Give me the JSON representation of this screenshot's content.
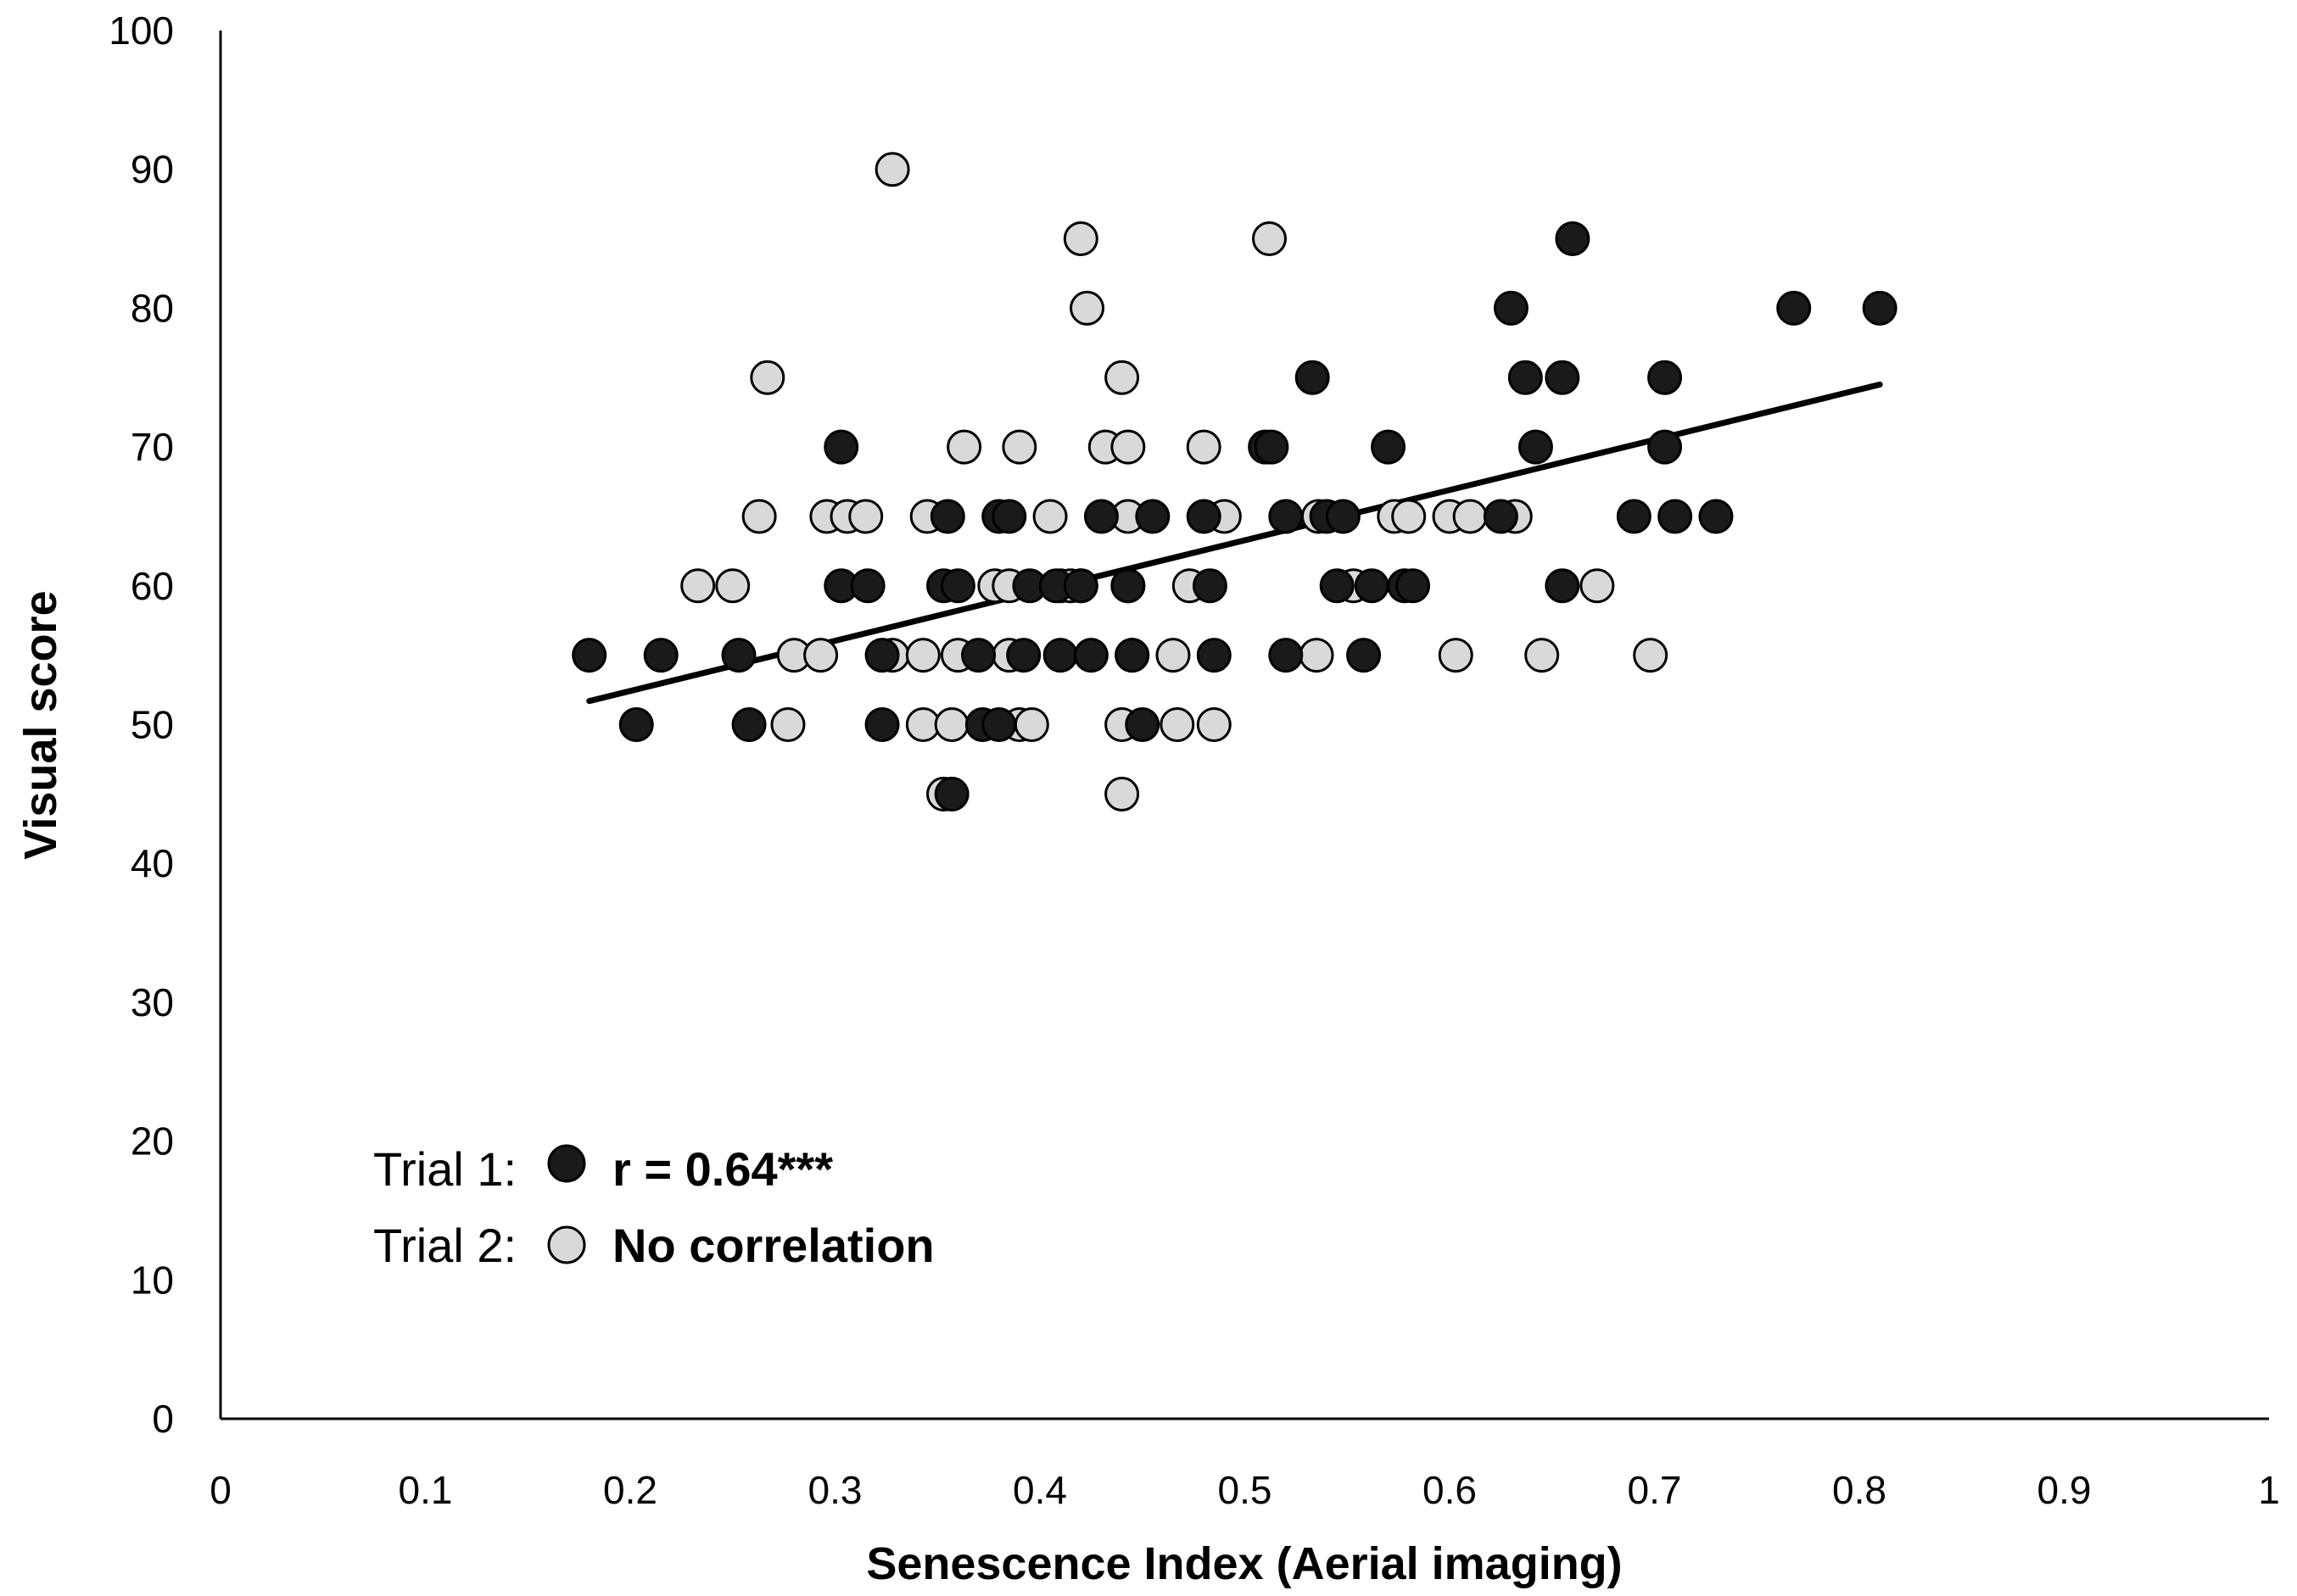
{
  "chart_data": {
    "type": "scatter",
    "xlabel": "Senescence Index (Aerial imaging)",
    "ylabel": "Visual score",
    "xlim": [
      0,
      1
    ],
    "ylim": [
      0,
      100
    ],
    "x_ticks": [
      "0",
      "0.1",
      "0.2",
      "0.3",
      "0.4",
      "0.5",
      "0.6",
      "0.7",
      "0.8",
      "0.9",
      "1"
    ],
    "y_ticks": [
      "0",
      "10",
      "20",
      "30",
      "40",
      "50",
      "60",
      "70",
      "80",
      "90",
      "100"
    ],
    "grid": false,
    "legend_position": "bottom-left",
    "trendline": {
      "series": "Trial 1",
      "x": [
        0.18,
        0.81
      ],
      "y": [
        51.7,
        74.5
      ],
      "color": "#000000"
    },
    "series": [
      {
        "name": "Trial 1",
        "color": "#1a1a1a",
        "stroke": "#000000",
        "note": "r = 0.64***",
        "points": [
          [
            0.18,
            55
          ],
          [
            0.203,
            50
          ],
          [
            0.215,
            55
          ],
          [
            0.253,
            55
          ],
          [
            0.258,
            50
          ],
          [
            0.303,
            70
          ],
          [
            0.303,
            60
          ],
          [
            0.316,
            60
          ],
          [
            0.323,
            55
          ],
          [
            0.323,
            50
          ],
          [
            0.353,
            60
          ],
          [
            0.355,
            65
          ],
          [
            0.357,
            45
          ],
          [
            0.36,
            60
          ],
          [
            0.37,
            55
          ],
          [
            0.372,
            50
          ],
          [
            0.38,
            65
          ],
          [
            0.38,
            50
          ],
          [
            0.385,
            65
          ],
          [
            0.392,
            55
          ],
          [
            0.395,
            60
          ],
          [
            0.408,
            60
          ],
          [
            0.41,
            55
          ],
          [
            0.42,
            60
          ],
          [
            0.425,
            55
          ],
          [
            0.43,
            65
          ],
          [
            0.443,
            60
          ],
          [
            0.445,
            55
          ],
          [
            0.45,
            50
          ],
          [
            0.455,
            65
          ],
          [
            0.48,
            65
          ],
          [
            0.483,
            60
          ],
          [
            0.485,
            55
          ],
          [
            0.51,
            70
          ],
          [
            0.513,
            70
          ],
          [
            0.52,
            65
          ],
          [
            0.52,
            55
          ],
          [
            0.533,
            75
          ],
          [
            0.54,
            65
          ],
          [
            0.545,
            60
          ],
          [
            0.548,
            65
          ],
          [
            0.558,
            55
          ],
          [
            0.562,
            60
          ],
          [
            0.57,
            70
          ],
          [
            0.578,
            60
          ],
          [
            0.582,
            60
          ],
          [
            0.625,
            65
          ],
          [
            0.63,
            80
          ],
          [
            0.637,
            75
          ],
          [
            0.642,
            70
          ],
          [
            0.655,
            60
          ],
          [
            0.655,
            75
          ],
          [
            0.66,
            85
          ],
          [
            0.69,
            65
          ],
          [
            0.705,
            75
          ],
          [
            0.705,
            70
          ],
          [
            0.71,
            65
          ],
          [
            0.73,
            65
          ],
          [
            0.768,
            80
          ],
          [
            0.81,
            80
          ]
        ]
      },
      {
        "name": "Trial 2",
        "color": "#d9d9d9",
        "stroke": "#000000",
        "note": "No correlation",
        "points": [
          [
            0.233,
            60
          ],
          [
            0.25,
            60
          ],
          [
            0.263,
            65
          ],
          [
            0.267,
            75
          ],
          [
            0.277,
            50
          ],
          [
            0.28,
            55
          ],
          [
            0.293,
            55
          ],
          [
            0.296,
            65
          ],
          [
            0.306,
            65
          ],
          [
            0.315,
            65
          ],
          [
            0.328,
            90
          ],
          [
            0.328,
            55
          ],
          [
            0.343,
            50
          ],
          [
            0.343,
            55
          ],
          [
            0.345,
            65
          ],
          [
            0.353,
            45
          ],
          [
            0.357,
            50
          ],
          [
            0.36,
            55
          ],
          [
            0.363,
            70
          ],
          [
            0.378,
            60
          ],
          [
            0.385,
            55
          ],
          [
            0.385,
            60
          ],
          [
            0.39,
            70
          ],
          [
            0.39,
            50
          ],
          [
            0.396,
            50
          ],
          [
            0.405,
            65
          ],
          [
            0.41,
            60
          ],
          [
            0.415,
            60
          ],
          [
            0.42,
            60
          ],
          [
            0.42,
            85
          ],
          [
            0.423,
            80
          ],
          [
            0.432,
            70
          ],
          [
            0.44,
            50
          ],
          [
            0.44,
            45
          ],
          [
            0.44,
            75
          ],
          [
            0.443,
            70
          ],
          [
            0.443,
            65
          ],
          [
            0.443,
            60
          ],
          [
            0.445,
            55
          ],
          [
            0.465,
            55
          ],
          [
            0.467,
            50
          ],
          [
            0.473,
            60
          ],
          [
            0.48,
            70
          ],
          [
            0.485,
            50
          ],
          [
            0.49,
            65
          ],
          [
            0.512,
            85
          ],
          [
            0.535,
            55
          ],
          [
            0.536,
            65
          ],
          [
            0.553,
            60
          ],
          [
            0.573,
            65
          ],
          [
            0.58,
            65
          ],
          [
            0.603,
            55
          ],
          [
            0.6,
            65
          ],
          [
            0.61,
            65
          ],
          [
            0.632,
            65
          ],
          [
            0.645,
            55
          ],
          [
            0.672,
            60
          ],
          [
            0.698,
            55
          ]
        ]
      }
    ],
    "legend": [
      {
        "label": "Trial 1:",
        "note": "r = 0.64***"
      },
      {
        "label": "Trial 2:",
        "note": "No correlation"
      }
    ]
  }
}
